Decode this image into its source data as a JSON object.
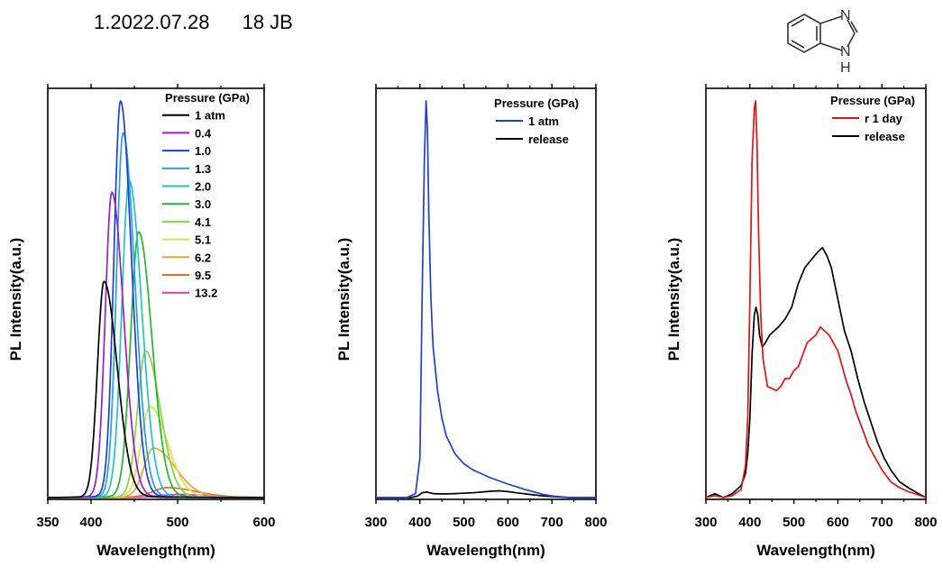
{
  "header": {
    "date": "1.2022.07.28",
    "sample": "18 JB"
  },
  "molecule": {
    "atom_n": "N",
    "atom_nh_n": "N",
    "atom_nh_h": "H"
  },
  "chart_data": [
    {
      "type": "line",
      "xlabel": "Wavelength(nm)",
      "ylabel": "PL Intensity(a.u.)",
      "xlim": [
        350,
        600
      ],
      "xticks": [
        350,
        400,
        500,
        600
      ],
      "ylim": [
        0,
        1
      ],
      "legend_title": "Pressure (GPa)",
      "legend_position": "top-right",
      "series": [
        {
          "name": "1 atm",
          "color": "#000000",
          "peak_x": 415,
          "peak_y": 0.545,
          "wl": 9,
          "wr": 18,
          "tail": 0.03
        },
        {
          "name": "0.4",
          "color": "#9b1fc4",
          "peak_x": 424,
          "peak_y": 0.77,
          "wl": 9,
          "wr": 16,
          "tail": 0.03
        },
        {
          "name": "1.0",
          "color": "#1f3fd6",
          "peak_x": 434,
          "peak_y": 1.0,
          "wl": 9,
          "wr": 15,
          "tail": 0.03
        },
        {
          "name": "1.3",
          "color": "#1fa3e6",
          "peak_x": 437,
          "peak_y": 0.92,
          "wl": 9,
          "wr": 16,
          "tail": 0.03
        },
        {
          "name": "2.0",
          "color": "#21c4c4",
          "peak_x": 444,
          "peak_y": 0.8,
          "wl": 10,
          "wr": 17,
          "tail": 0.03
        },
        {
          "name": "3.0",
          "color": "#22b82a",
          "peak_x": 455,
          "peak_y": 0.67,
          "wl": 11,
          "wr": 18,
          "tail": 0.03
        },
        {
          "name": "4.1",
          "color": "#8ad444",
          "peak_x": 463,
          "peak_y": 0.37,
          "wl": 11,
          "wr": 20,
          "tail": 0.04
        },
        {
          "name": "5.1",
          "color": "#dede4a",
          "peak_x": 468,
          "peak_y": 0.23,
          "wl": 12,
          "wr": 24,
          "tail": 0.05
        },
        {
          "name": "6.2",
          "color": "#e0a83a",
          "peak_x": 472,
          "peak_y": 0.125,
          "wl": 13,
          "wr": 30,
          "tail": 0.07
        },
        {
          "name": "9.5",
          "color": "#e07030",
          "peak_x": 488,
          "peak_y": 0.025,
          "wl": 20,
          "wr": 40,
          "tail": 0.1
        },
        {
          "name": "13.2",
          "color": "#d63fb8",
          "peak_x": 500,
          "peak_y": 0.008,
          "wl": 25,
          "wr": 45,
          "tail": 0.1
        }
      ]
    },
    {
      "type": "line",
      "xlabel": "Wavelength(nm)",
      "ylabel": "PL Intensity(a.u.)",
      "xlim": [
        300,
        800
      ],
      "xticks": [
        300,
        400,
        500,
        600,
        700,
        800
      ],
      "ylim": [
        0,
        1
      ],
      "legend_title": "Pressure (GPa)",
      "legend_position": "top-right",
      "series": [
        {
          "name": "1 atm",
          "color": "#1f3fd6",
          "x": [
            300,
            370,
            390,
            400,
            405,
            410,
            414,
            417,
            420,
            425,
            430,
            440,
            450,
            460,
            480,
            500,
            520,
            540,
            560,
            580,
            600,
            620,
            640,
            660,
            680,
            700,
            720,
            740,
            800
          ],
          "y": [
            0.0,
            0.0,
            0.01,
            0.1,
            0.5,
            0.85,
            1.0,
            0.93,
            0.72,
            0.5,
            0.38,
            0.27,
            0.2,
            0.155,
            0.11,
            0.085,
            0.07,
            0.06,
            0.05,
            0.042,
            0.034,
            0.027,
            0.02,
            0.014,
            0.008,
            0.004,
            0.002,
            0.0,
            0.0
          ]
        },
        {
          "name": "release",
          "color": "#000000",
          "x": [
            300,
            380,
            395,
            405,
            415,
            430,
            450,
            480,
            520,
            560,
            580,
            600,
            620,
            650,
            680,
            710,
            740,
            800
          ],
          "y": [
            0.0,
            0.0,
            0.004,
            0.012,
            0.014,
            0.01,
            0.009,
            0.01,
            0.012,
            0.016,
            0.017,
            0.015,
            0.012,
            0.008,
            0.004,
            0.002,
            0.0,
            0.0
          ]
        }
      ]
    },
    {
      "type": "line",
      "xlabel": "Wavelength(nm)",
      "ylabel": "PL Intensity(a.u.)",
      "xlim": [
        300,
        800
      ],
      "xticks": [
        300,
        400,
        500,
        600,
        700,
        800
      ],
      "ylim": [
        0,
        1
      ],
      "legend_title": "Pressure (GPa)",
      "legend_position": "top-right",
      "series": [
        {
          "name": "r 1 day",
          "color": "#e01414",
          "x": [
            300,
            320,
            340,
            360,
            380,
            390,
            395,
            400,
            405,
            410,
            413,
            416,
            420,
            425,
            430,
            440,
            450,
            460,
            470,
            480,
            490,
            500,
            510,
            520,
            530,
            540,
            550,
            560,
            570,
            580,
            590,
            600,
            610,
            620,
            630,
            640,
            650,
            660,
            670,
            680,
            690,
            700,
            720,
            740,
            760,
            780,
            800
          ],
          "y": [
            0.0,
            0.005,
            0.0,
            0.005,
            0.02,
            0.08,
            0.2,
            0.5,
            0.85,
            0.98,
            1.0,
            0.9,
            0.65,
            0.45,
            0.35,
            0.28,
            0.275,
            0.27,
            0.28,
            0.3,
            0.3,
            0.32,
            0.33,
            0.36,
            0.39,
            0.4,
            0.41,
            0.43,
            0.42,
            0.41,
            0.39,
            0.37,
            0.33,
            0.29,
            0.26,
            0.22,
            0.19,
            0.16,
            0.13,
            0.11,
            0.09,
            0.07,
            0.04,
            0.025,
            0.015,
            0.008,
            0.0
          ]
        },
        {
          "name": "release",
          "color": "#000000",
          "x": [
            300,
            320,
            340,
            360,
            380,
            390,
            395,
            400,
            405,
            410,
            414,
            418,
            422,
            428,
            435,
            445,
            455,
            465,
            480,
            495,
            510,
            525,
            540,
            555,
            565,
            575,
            585,
            600,
            615,
            630,
            645,
            660,
            675,
            690,
            705,
            720,
            740,
            760,
            780,
            800
          ],
          "y": [
            0.0,
            0.01,
            0.0,
            0.01,
            0.03,
            0.06,
            0.11,
            0.2,
            0.36,
            0.46,
            0.48,
            0.46,
            0.41,
            0.38,
            0.39,
            0.41,
            0.42,
            0.43,
            0.45,
            0.48,
            0.54,
            0.58,
            0.6,
            0.62,
            0.63,
            0.61,
            0.58,
            0.5,
            0.42,
            0.37,
            0.3,
            0.24,
            0.19,
            0.14,
            0.1,
            0.07,
            0.04,
            0.025,
            0.012,
            0.0
          ]
        }
      ]
    }
  ]
}
